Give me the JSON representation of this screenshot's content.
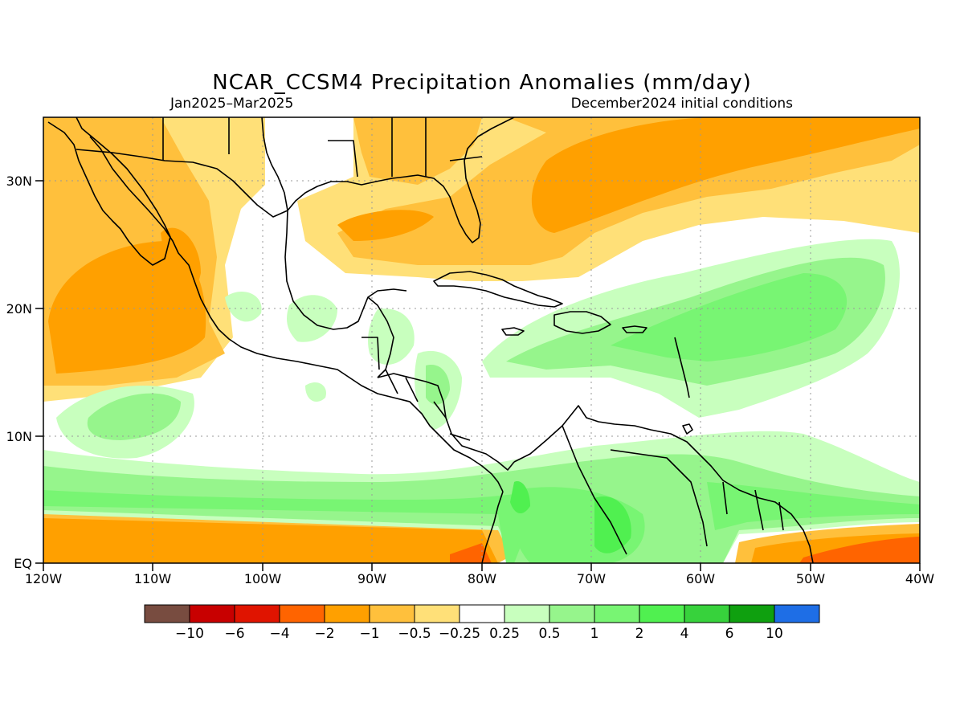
{
  "title": "NCAR_CCSM4 Precipitation Anomalies (mm/day)",
  "subtitle_left": "Jan2025–Mar2025",
  "subtitle_right": "December2024 initial conditions",
  "lat_labels": [
    "30N",
    "20N",
    "10N",
    "EQ"
  ],
  "lon_labels": [
    "120W",
    "110W",
    "100W",
    "90W",
    "80W",
    "70W",
    "60W",
    "50W",
    "40W"
  ],
  "colorbar": {
    "colors": [
      "#784c40",
      "#c80000",
      "#e01400",
      "#ff6400",
      "#ffa000",
      "#ffc03c",
      "#ffe078",
      "#ffffff",
      "#c8ffbe",
      "#96f58c",
      "#78f573",
      "#50f050",
      "#37d23c",
      "#0fa00f",
      "#1e6ee6"
    ],
    "tick_labels": [
      "−10",
      "−6",
      "−4",
      "−2",
      "−1",
      "−0.5",
      "−0.25",
      "0.25",
      "0.5",
      "1",
      "2",
      "4",
      "6",
      "10"
    ]
  },
  "palette": {
    "dry_light": "#ffe078",
    "dry_mid": "#ffc03c",
    "dry": "#ffa000",
    "dry_strong": "#ff6400",
    "wet_light": "#c8ffbe",
    "wet": "#96f58c",
    "wet_mid": "#78f573",
    "wet_strong": "#50f050",
    "coast": "#000000",
    "grid": "#999999"
  }
}
